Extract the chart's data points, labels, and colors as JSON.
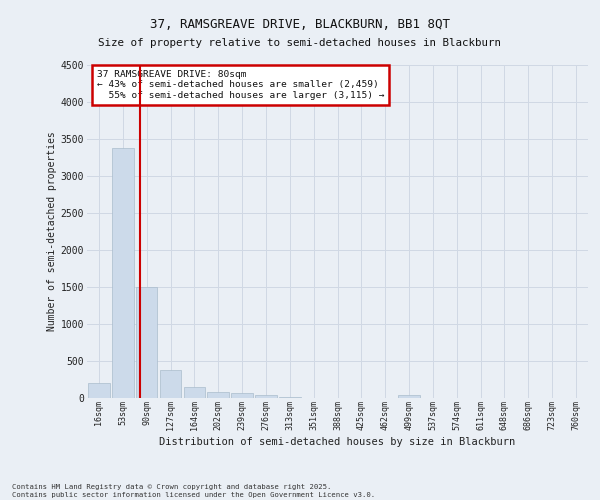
{
  "title_line1": "37, RAMSGREAVE DRIVE, BLACKBURN, BB1 8QT",
  "title_line2": "Size of property relative to semi-detached houses in Blackburn",
  "xlabel": "Distribution of semi-detached houses by size in Blackburn",
  "ylabel": "Number of semi-detached properties",
  "bin_labels": [
    "16sqm",
    "53sqm",
    "90sqm",
    "127sqm",
    "164sqm",
    "202sqm",
    "239sqm",
    "276sqm",
    "313sqm",
    "351sqm",
    "388sqm",
    "425sqm",
    "462sqm",
    "499sqm",
    "537sqm",
    "574sqm",
    "611sqm",
    "648sqm",
    "686sqm",
    "723sqm",
    "760sqm"
  ],
  "bar_values": [
    200,
    3380,
    1500,
    370,
    140,
    80,
    55,
    35,
    10,
    0,
    0,
    0,
    0,
    30,
    0,
    0,
    0,
    0,
    0,
    0,
    0
  ],
  "bar_color": "#ccdaea",
  "bar_edge_color": "#aabccc",
  "grid_color": "#d0d8e4",
  "vline_color": "#cc0000",
  "annotation_text": "37 RAMSGREAVE DRIVE: 80sqm\n← 43% of semi-detached houses are smaller (2,459)\n  55% of semi-detached houses are larger (3,115) →",
  "annotation_box_color": "#cc0000",
  "ylim": [
    0,
    4500
  ],
  "yticks": [
    0,
    500,
    1000,
    1500,
    2000,
    2500,
    3000,
    3500,
    4000,
    4500
  ],
  "footnote": "Contains HM Land Registry data © Crown copyright and database right 2025.\nContains public sector information licensed under the Open Government Licence v3.0.",
  "background_color": "#eaeff5",
  "plot_bg_color": "#eaeff5"
}
